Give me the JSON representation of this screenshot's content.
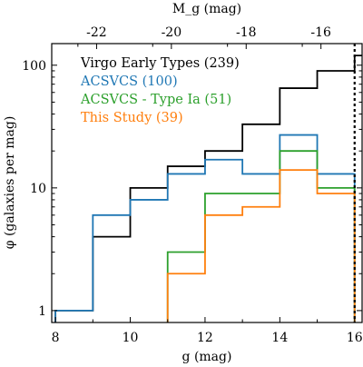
{
  "chart_data": {
    "type": "step",
    "xlabel": "g (mag)",
    "ylabel": "φ (galaxies per mag)",
    "top_xlabel": "M_g (mag)",
    "xlim": [
      7.9,
      16.2
    ],
    "ylim": [
      0.8,
      150
    ],
    "yscale": "log",
    "x_ticks": [
      8,
      10,
      12,
      14,
      16
    ],
    "y_ticks": [
      1,
      10,
      100
    ],
    "top_ticks": [
      {
        "label": "-22",
        "g": 9.1
      },
      {
        "label": "-20",
        "g": 11.1
      },
      {
        "label": "-18",
        "g": 13.1
      },
      {
        "label": "-16",
        "g": 15.1
      }
    ],
    "vline": {
      "x": 16,
      "style": "dotted",
      "color": "#000000"
    },
    "legend_position": "upper-left",
    "series": [
      {
        "name": "Virgo Early Types (239)",
        "color": "#000000",
        "bins": [
          8,
          9,
          10,
          11,
          12,
          13,
          14,
          15,
          16,
          17
        ],
        "values": [
          1,
          4,
          10,
          15,
          20,
          33,
          65,
          90,
          120
        ]
      },
      {
        "name": "ACSVCS (100)",
        "color": "#1f77b4",
        "bins": [
          8,
          9,
          10,
          11,
          12,
          13,
          14,
          15,
          16
        ],
        "values": [
          1,
          6,
          8,
          13,
          17,
          13,
          27,
          13
        ]
      },
      {
        "name": "ACSVCS - Type Ia (51)",
        "color": "#2ca02c",
        "bins": [
          11,
          12,
          13,
          14,
          15,
          16
        ],
        "values": [
          3,
          9,
          9,
          20,
          10
        ]
      },
      {
        "name": "This Study (39)",
        "color": "#ff7f0e",
        "bins": [
          11,
          12,
          13,
          14,
          15,
          16
        ],
        "values": [
          2,
          6,
          7,
          14,
          9
        ]
      }
    ]
  }
}
